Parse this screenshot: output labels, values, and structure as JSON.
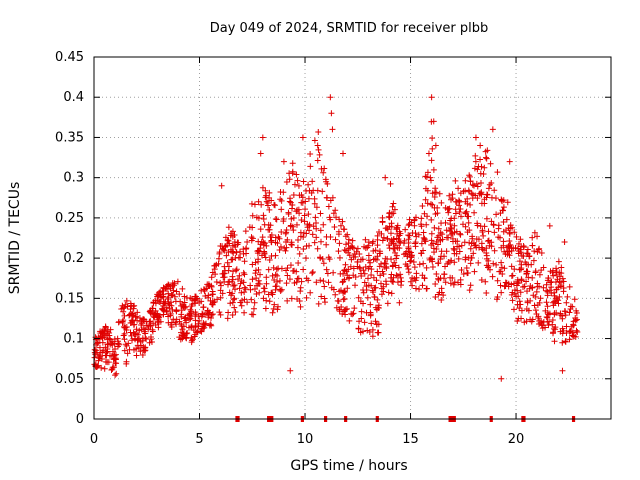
{
  "chart_data": {
    "type": "scatter",
    "title": "Day 049 of 2024, SRMTID for receiver plbb",
    "xlabel": "GPS time / hours",
    "ylabel": "SRMTID / TECUs",
    "xlim": [
      0,
      24.5
    ],
    "ylim": [
      0,
      0.45
    ],
    "xticks": [
      0,
      5,
      10,
      15,
      20
    ],
    "xtick_labels": [
      "0",
      "5",
      "10",
      "15",
      "20"
    ],
    "yticks": [
      0,
      0.05,
      0.1,
      0.15,
      0.2,
      0.25,
      0.3,
      0.35,
      0.4,
      0.45
    ],
    "ytick_labels": [
      "0",
      "0.05",
      "0.1",
      "0.15",
      "0.2",
      "0.25",
      "0.3",
      "0.35",
      "0.4",
      "0.45"
    ],
    "grid": true,
    "series_color": "#e00000",
    "marker": "plus",
    "envelope_hours": [
      0,
      0.5,
      1,
      1.5,
      2,
      2.5,
      3,
      3.5,
      4,
      4.5,
      5,
      5.5,
      6,
      6.5,
      7,
      7.5,
      8,
      8.5,
      9,
      9.5,
      10,
      10.5,
      11,
      11.5,
      12,
      12.5,
      13,
      13.5,
      14,
      14.5,
      15,
      15.5,
      16,
      16.5,
      17,
      17.5,
      18,
      18.5,
      19,
      19.5,
      20,
      20.5,
      21,
      21.5,
      22,
      22.5,
      23
    ],
    "envelope_low": [
      0.05,
      0.05,
      0.04,
      0.05,
      0.06,
      0.07,
      0.1,
      0.11,
      0.07,
      0.08,
      0.09,
      0.1,
      0.1,
      0.1,
      0.09,
      0.09,
      0.1,
      0.1,
      0.08,
      0.1,
      0.1,
      0.09,
      0.09,
      0.1,
      0.1,
      0.09,
      0.07,
      0.07,
      0.11,
      0.12,
      0.14,
      0.13,
      0.1,
      0.1,
      0.13,
      0.12,
      0.13,
      0.11,
      0.1,
      0.12,
      0.08,
      0.09,
      0.08,
      0.08,
      0.07,
      0.07,
      0.1
    ],
    "envelope_high": [
      0.1,
      0.12,
      0.11,
      0.16,
      0.14,
      0.13,
      0.16,
      0.17,
      0.18,
      0.15,
      0.16,
      0.18,
      0.22,
      0.25,
      0.23,
      0.27,
      0.3,
      0.28,
      0.3,
      0.34,
      0.3,
      0.38,
      0.33,
      0.26,
      0.24,
      0.22,
      0.23,
      0.24,
      0.3,
      0.25,
      0.26,
      0.26,
      0.38,
      0.28,
      0.3,
      0.29,
      0.33,
      0.34,
      0.33,
      0.29,
      0.24,
      0.22,
      0.24,
      0.19,
      0.21,
      0.17,
      0.14
    ],
    "spikes": [
      {
        "x": 6.05,
        "y": 0.29
      },
      {
        "x": 7.8,
        "y": 0.27
      },
      {
        "x": 7.9,
        "y": 0.33
      },
      {
        "x": 8.0,
        "y": 0.35
      },
      {
        "x": 9.0,
        "y": 0.32
      },
      {
        "x": 9.9,
        "y": 0.35
      },
      {
        "x": 10.2,
        "y": 0.24
      },
      {
        "x": 10.6,
        "y": 0.34
      },
      {
        "x": 11.2,
        "y": 0.4
      },
      {
        "x": 11.25,
        "y": 0.38
      },
      {
        "x": 11.3,
        "y": 0.36
      },
      {
        "x": 11.8,
        "y": 0.33
      },
      {
        "x": 13.8,
        "y": 0.3
      },
      {
        "x": 16.0,
        "y": 0.4
      },
      {
        "x": 16.1,
        "y": 0.37
      },
      {
        "x": 16.2,
        "y": 0.34
      },
      {
        "x": 17.6,
        "y": 0.27
      },
      {
        "x": 18.1,
        "y": 0.35
      },
      {
        "x": 18.3,
        "y": 0.34
      },
      {
        "x": 18.9,
        "y": 0.36
      },
      {
        "x": 19.7,
        "y": 0.32
      },
      {
        "x": 21.6,
        "y": 0.24
      },
      {
        "x": 22.3,
        "y": 0.22
      },
      {
        "x": 22.2,
        "y": 0.06
      },
      {
        "x": 9.3,
        "y": 0.06
      },
      {
        "x": 19.3,
        "y": 0.05
      }
    ],
    "baseline_markers": [
      {
        "start": 6.7,
        "end": 6.9
      },
      {
        "start": 8.2,
        "end": 8.5
      },
      {
        "start": 9.8,
        "end": 9.95
      },
      {
        "start": 10.9,
        "end": 11.05
      },
      {
        "start": 11.85,
        "end": 12.0
      },
      {
        "start": 13.35,
        "end": 13.5
      },
      {
        "start": 16.8,
        "end": 17.15
      },
      {
        "start": 18.75,
        "end": 18.9
      },
      {
        "start": 20.25,
        "end": 20.45
      },
      {
        "start": 22.65,
        "end": 22.8
      }
    ],
    "point_count": 1800
  }
}
